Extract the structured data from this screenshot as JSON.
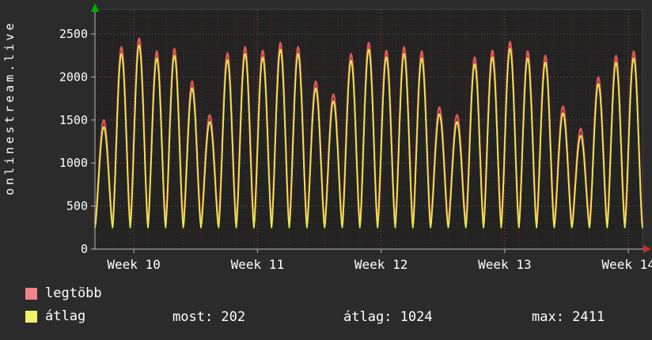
{
  "watermark": "onlinestream.live",
  "colors": {
    "background": "#2b2b2b",
    "plot_background": "#232323",
    "axis": "#b8b8b8",
    "text": "#ffffff",
    "arrow_up": "#00b000",
    "arrow_right": "#c83232"
  },
  "legend": {
    "series": [
      {
        "label": "legtöbb",
        "color": "#f18484"
      },
      {
        "label": "átlag",
        "color": "#f0f268"
      }
    ],
    "stats": [
      "most: 202",
      "átlag: 1024",
      "max: 2411"
    ]
  },
  "chart_data": {
    "type": "line",
    "title": "",
    "xlabel": "",
    "ylabel": "onlinestream.live",
    "legend_position": "bottom-left",
    "grid": {
      "on": true,
      "minor_color": "rgba(220,70,50,0.30)",
      "major_color": "rgba(255,130,110,0.55)",
      "frame_color": "rgba(255,255,255,0.12)"
    },
    "plot_bg": "#232323",
    "x_axis": {
      "labels": [
        "Week 10",
        "Week 11",
        "Week 12",
        "Week 13",
        "Week 14"
      ],
      "tick_days": [
        2.2,
        9.2,
        16.2,
        23.2,
        30.2
      ],
      "total_days": 31
    },
    "y_axis": {
      "ticks": [
        0,
        500,
        1000,
        1500,
        2000,
        2500
      ],
      "minor_step": 100,
      "max": 2785,
      "ylim": [
        0,
        2785
      ]
    },
    "series": [
      {
        "name": "legtöbb",
        "color": "#e25555",
        "width": 2.2,
        "trough": 300,
        "day_peaks": [
          1500,
          2350,
          2450,
          2300,
          2330,
          1950,
          1560,
          2280,
          2350,
          2310,
          2400,
          2350,
          1950,
          1800,
          2270,
          2400,
          2310,
          2350,
          2300,
          1650,
          1560,
          2230,
          2310,
          2411,
          2300,
          2250,
          1660,
          1400,
          2000,
          2250,
          2300
        ]
      },
      {
        "name": "átlag",
        "color": "#e9eb4f",
        "width": 1.8,
        "trough": 250,
        "day_peaks": [
          1420,
          2270,
          2370,
          2220,
          2250,
          1870,
          1480,
          2200,
          2270,
          2230,
          2320,
          2270,
          1870,
          1720,
          2190,
          2320,
          2230,
          2270,
          2220,
          1570,
          1480,
          2150,
          2230,
          2330,
          2220,
          2170,
          1580,
          1320,
          1920,
          2170,
          2220
        ]
      }
    ],
    "summary": {
      "most": 202,
      "atlag": 1024,
      "max": 2411
    }
  }
}
